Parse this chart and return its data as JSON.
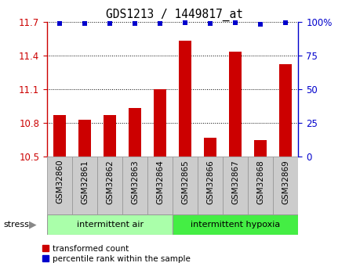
{
  "title": "GDS1213 / 1449817_at",
  "samples": [
    "GSM32860",
    "GSM32861",
    "GSM32862",
    "GSM32863",
    "GSM32864",
    "GSM32865",
    "GSM32866",
    "GSM32867",
    "GSM32868",
    "GSM32869"
  ],
  "bar_values": [
    10.87,
    10.83,
    10.87,
    10.93,
    11.1,
    11.53,
    10.67,
    11.43,
    10.65,
    11.32
  ],
  "percentile_y_normalized": [
    11.685,
    11.685,
    11.68,
    11.685,
    11.685,
    11.69,
    11.68,
    11.69,
    11.675,
    11.69
  ],
  "bar_color": "#CC0000",
  "dot_color": "#0000CC",
  "ylim": [
    10.5,
    11.7
  ],
  "y2lim": [
    0,
    100
  ],
  "yticks": [
    10.5,
    10.8,
    11.1,
    11.4,
    11.7
  ],
  "y2ticks": [
    0,
    25,
    50,
    75,
    100
  ],
  "group1_label": "intermittent air",
  "group2_label": "intermittent hypoxia",
  "group1_color": "#AAFFAA",
  "group2_color": "#44EE44",
  "stress_label": "stress",
  "legend_bar_label": "transformed count",
  "legend_dot_label": "percentile rank within the sample",
  "tick_label_color_left": "#CC0000",
  "tick_label_color_right": "#0000CC",
  "n_group1": 5,
  "n_group2": 5,
  "xlabel_bg": "#CCCCCC",
  "xlabel_edgecolor": "#999999"
}
